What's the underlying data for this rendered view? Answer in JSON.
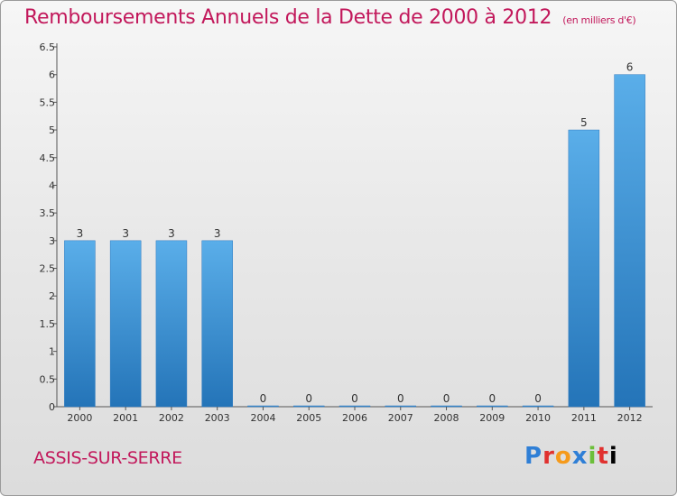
{
  "header": {
    "title": "Remboursements Annuels de la Dette de 2000 à 2012",
    "unit": "(en milliers d'€)"
  },
  "footer": {
    "commune": "ASSIS-SUR-SERRE",
    "brand_letters": [
      "P",
      "r",
      "o",
      "x",
      "i",
      "t",
      "i"
    ]
  },
  "chart_data": {
    "type": "bar",
    "categories": [
      "2000",
      "2001",
      "2002",
      "2003",
      "2004",
      "2005",
      "2006",
      "2007",
      "2008",
      "2009",
      "2010",
      "2011",
      "2012"
    ],
    "values": [
      3,
      3,
      3,
      3,
      0,
      0,
      0,
      0,
      0,
      0,
      0,
      5,
      6
    ],
    "data_labels": [
      "3",
      "3",
      "3",
      "3",
      "0",
      "0",
      "0",
      "0",
      "0",
      "0",
      "0",
      "5",
      "6"
    ],
    "yticks": [
      "0",
      "0.5",
      "1",
      "1.5",
      "2",
      "2.5",
      "3",
      "3.5",
      "4",
      "4.5",
      "5",
      "5.5",
      "6",
      "6.5"
    ],
    "ylim": [
      0,
      6.5
    ],
    "grid": false,
    "bar_color": "#3a8fd6"
  }
}
